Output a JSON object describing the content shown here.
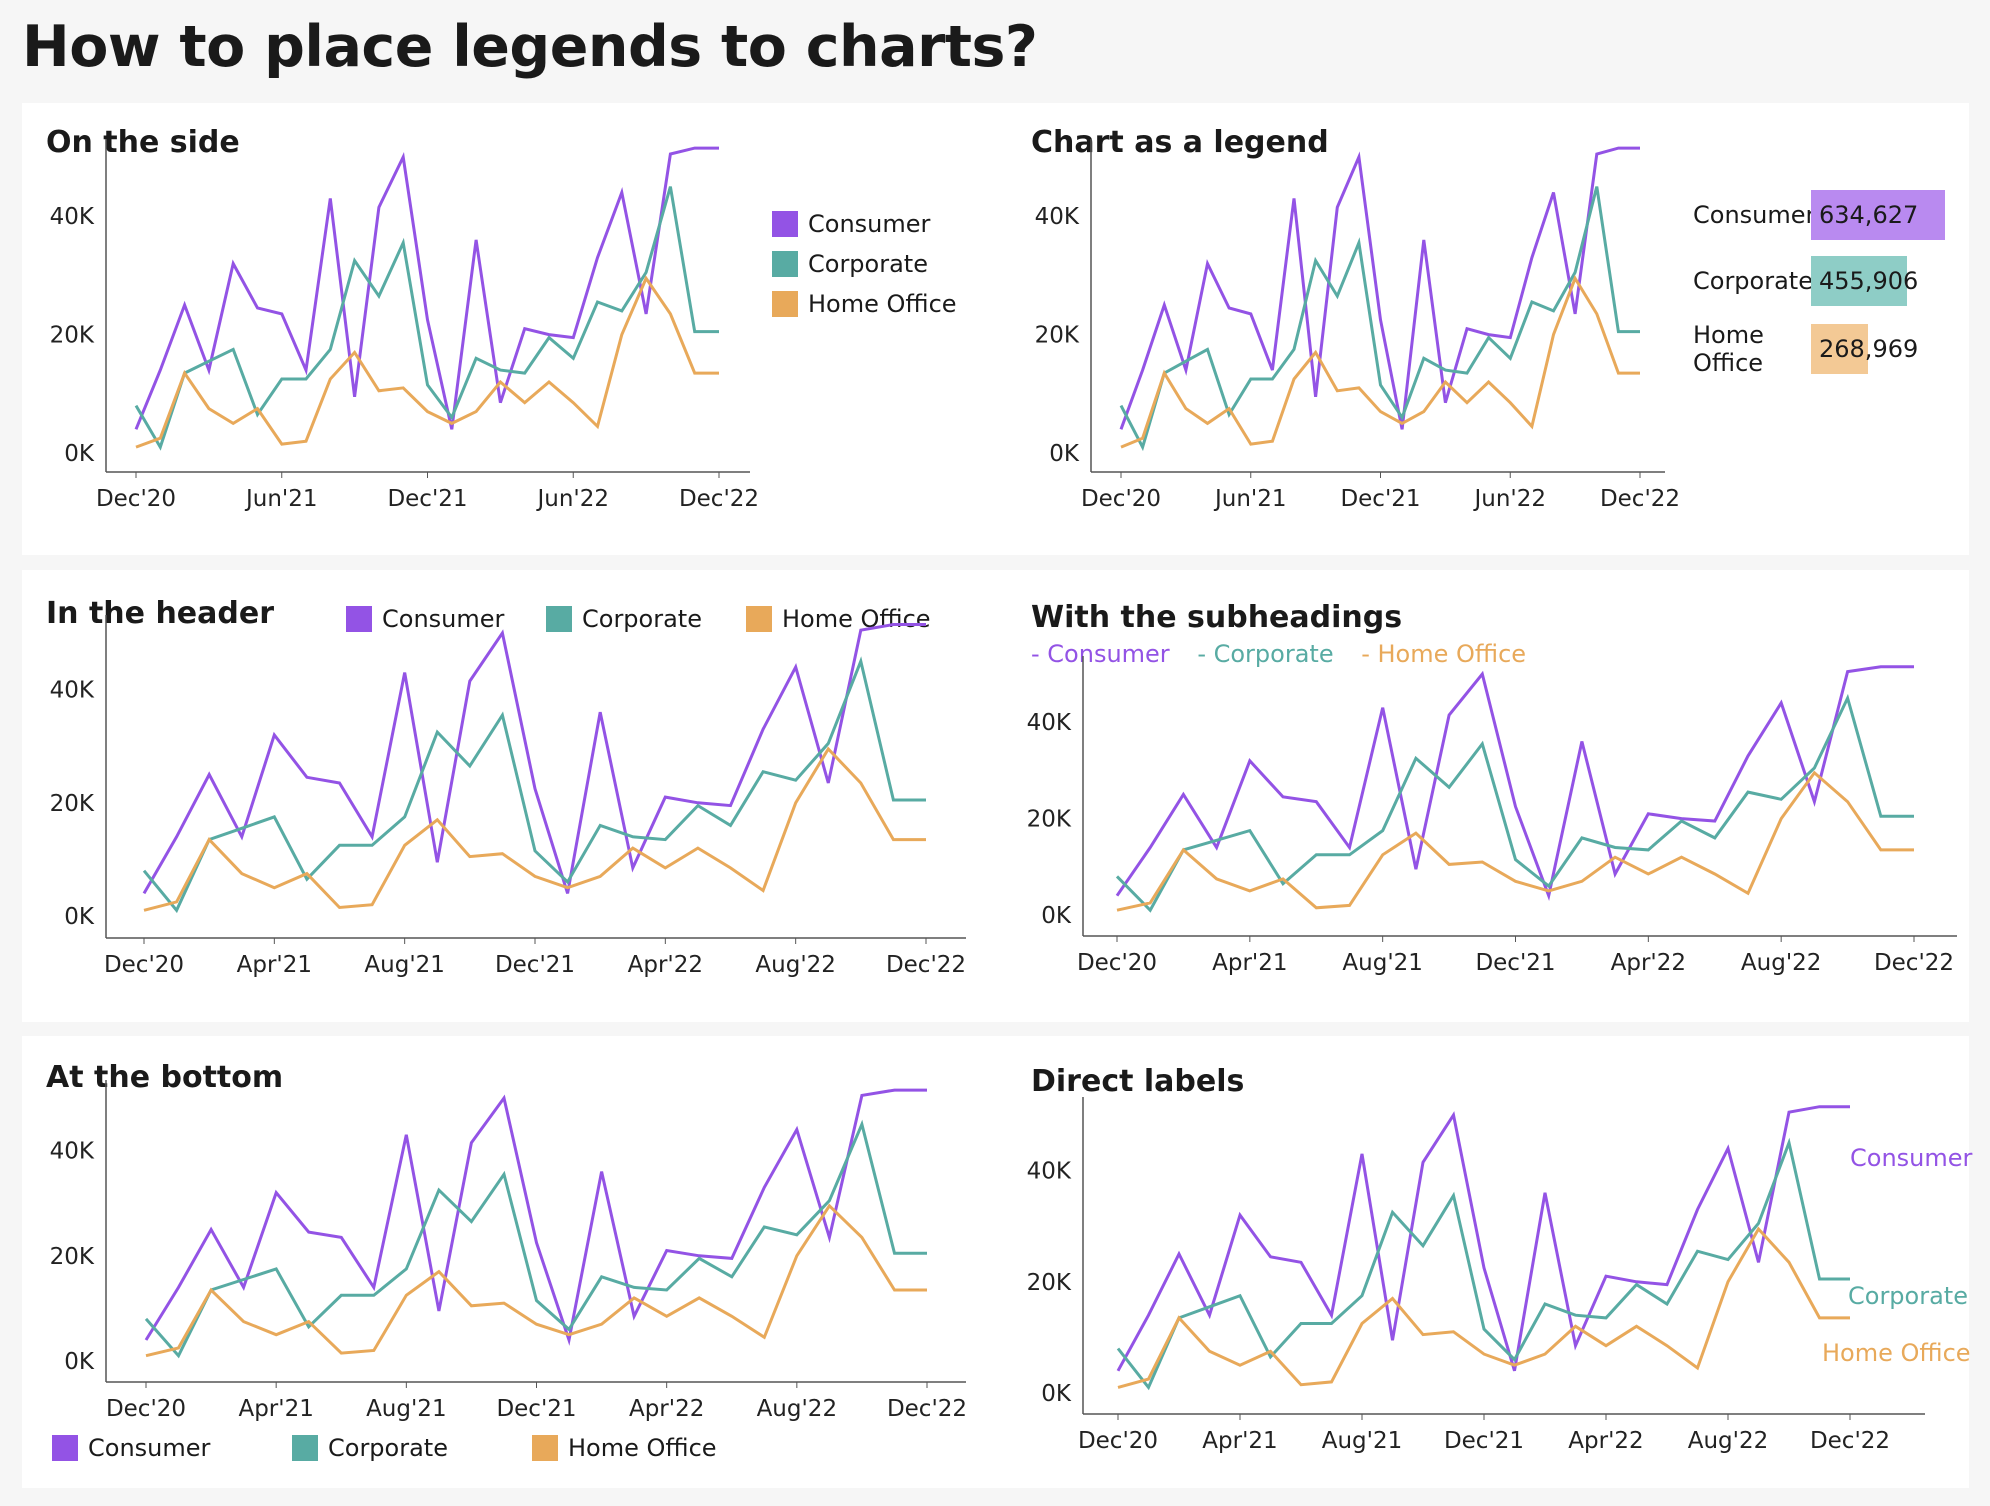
{
  "page_title": "How to place legends to charts?",
  "colors": {
    "consumer": "#9353e5",
    "corporate": "#58aba3",
    "home_office": "#e8a95a",
    "axis": "#555555"
  },
  "legend": {
    "consumer": "Consumer",
    "corporate": "Corporate",
    "home_office": "Home Office",
    "home_label": "Home",
    "office_label": "Office"
  },
  "panels": {
    "side": {
      "title": "On the side"
    },
    "chart_legend": {
      "title": "Chart as a legend",
      "totals": [
        {
          "label": "Consumer",
          "value": 634627,
          "display": "634,627"
        },
        {
          "label": "Corporate",
          "value": 455906,
          "display": "455,906"
        },
        {
          "label": "Home Office",
          "value": 268969,
          "display": "268,969"
        }
      ]
    },
    "header": {
      "title": "In the header"
    },
    "subheadings": {
      "title": "With the subheadings",
      "consumer": "- Consumer",
      "corporate": "- Corporate",
      "home_office": "- Home Office"
    },
    "bottom": {
      "title": "At the bottom"
    },
    "direct": {
      "title": "Direct labels"
    }
  },
  "tick_sets": {
    "six_month": [
      "Dec'20",
      "Jun'21",
      "Dec'21",
      "Jun'22",
      "Dec'22"
    ],
    "four_month": [
      "Dec'20",
      "Apr'21",
      "Aug'21",
      "Dec'21",
      "Apr'22",
      "Aug'22",
      "Dec'22"
    ]
  },
  "y_ticks": [
    "0K",
    "20K",
    "40K"
  ],
  "chart_data": {
    "type": "line",
    "x": [
      "Dec'20",
      "Jan'21",
      "Feb'21",
      "Mar'21",
      "Apr'21",
      "May'21",
      "Jun'21",
      "Jul'21",
      "Aug'21",
      "Sep'21",
      "Oct'21",
      "Nov'21",
      "Dec'21",
      "Jan'22",
      "Feb'22",
      "Mar'22",
      "Apr'22",
      "May'22",
      "Jun'22",
      "Jul'22",
      "Aug'22",
      "Sep'22",
      "Oct'22",
      "Nov'22",
      "Dec'22"
    ],
    "series": [
      {
        "name": "Consumer",
        "values": [
          4000,
          14000,
          25000,
          14000,
          32000,
          24500,
          23500,
          14000,
          43000,
          9500,
          41500,
          50000,
          22500,
          4000,
          36000,
          8500,
          21000,
          20000,
          19500,
          33000,
          44000,
          23500,
          50500,
          51500,
          51500
        ]
      },
      {
        "name": "Corporate",
        "values": [
          8000,
          1000,
          13500,
          15500,
          17500,
          6500,
          12500,
          12500,
          17500,
          32500,
          26500,
          35500,
          11500,
          6000,
          16000,
          14000,
          13500,
          19500,
          16000,
          25500,
          24000,
          30500,
          45000,
          20500,
          20500
        ]
      },
      {
        "name": "Home Office",
        "values": [
          1000,
          2500,
          13500,
          7500,
          5000,
          7500,
          1500,
          2000,
          12500,
          17000,
          10500,
          11000,
          7000,
          5000,
          7000,
          12000,
          8500,
          12000,
          8500,
          4500,
          20000,
          29500,
          23500,
          13500,
          13500
        ]
      }
    ],
    "ylim": [
      0,
      50000
    ],
    "y_ticks": [
      0,
      20000,
      40000
    ],
    "legend_placement": [
      "right",
      "bar-chart-right",
      "header",
      "subheading",
      "bottom",
      "direct-labels"
    ],
    "grid": false
  }
}
